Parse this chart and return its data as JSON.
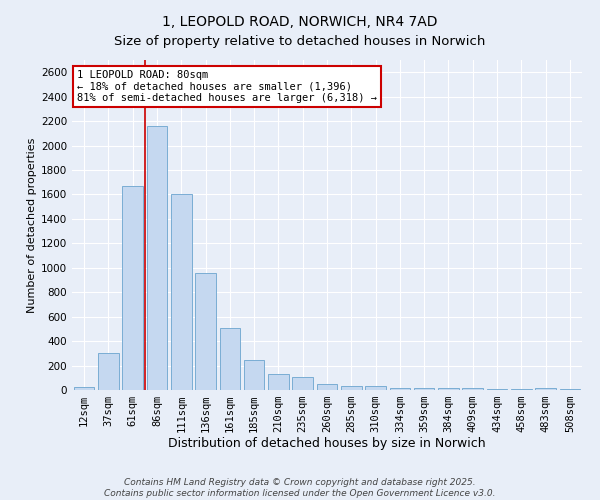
{
  "title": "1, LEOPOLD ROAD, NORWICH, NR4 7AD",
  "subtitle": "Size of property relative to detached houses in Norwich",
  "xlabel": "Distribution of detached houses by size in Norwich",
  "ylabel": "Number of detached properties",
  "categories": [
    "12sqm",
    "37sqm",
    "61sqm",
    "86sqm",
    "111sqm",
    "136sqm",
    "161sqm",
    "185sqm",
    "210sqm",
    "235sqm",
    "260sqm",
    "285sqm",
    "310sqm",
    "334sqm",
    "359sqm",
    "384sqm",
    "409sqm",
    "434sqm",
    "458sqm",
    "483sqm",
    "508sqm"
  ],
  "values": [
    25,
    300,
    1670,
    2160,
    1600,
    960,
    510,
    245,
    130,
    105,
    50,
    35,
    35,
    20,
    15,
    15,
    15,
    10,
    5,
    15,
    5
  ],
  "bar_color": "#c5d8f0",
  "bar_edge_color": "#7aadd4",
  "vline_color": "#cc0000",
  "annotation_text": "1 LEOPOLD ROAD: 80sqm\n← 18% of detached houses are smaller (1,396)\n81% of semi-detached houses are larger (6,318) →",
  "annotation_box_color": "#ffffff",
  "annotation_box_edge_color": "#cc0000",
  "ylim": [
    0,
    2700
  ],
  "yticks": [
    0,
    200,
    400,
    600,
    800,
    1000,
    1200,
    1400,
    1600,
    1800,
    2000,
    2200,
    2400,
    2600
  ],
  "background_color": "#e8eef8",
  "grid_color": "#ffffff",
  "footer_line1": "Contains HM Land Registry data © Crown copyright and database right 2025.",
  "footer_line2": "Contains public sector information licensed under the Open Government Licence v3.0.",
  "title_fontsize": 10,
  "xlabel_fontsize": 9,
  "ylabel_fontsize": 8,
  "tick_fontsize": 7.5,
  "annotation_fontsize": 7.5,
  "footer_fontsize": 6.5
}
